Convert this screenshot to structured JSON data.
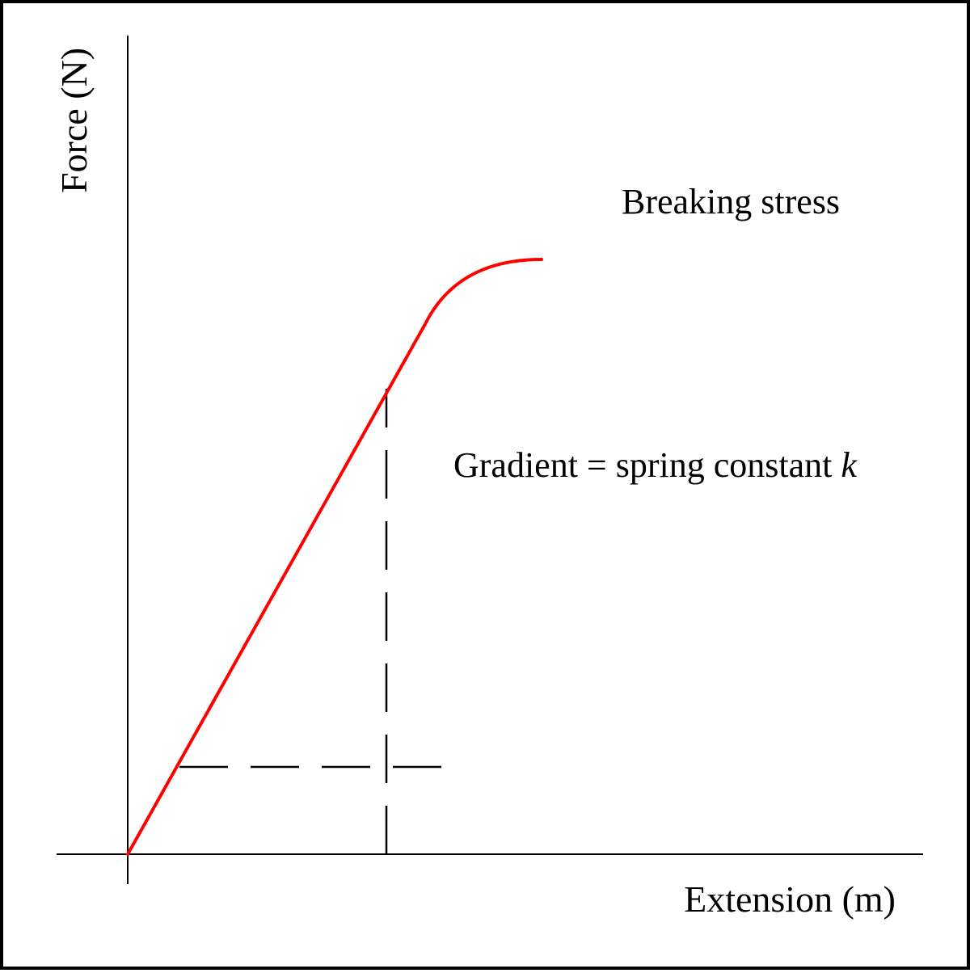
{
  "chart_data": {
    "type": "line",
    "title": "",
    "xlabel": "Extension (m)",
    "ylabel": "Force (N)",
    "ticks": "none",
    "grid": false,
    "series": [
      {
        "color": "#ff0000",
        "points": [
          [
            0,
            0
          ],
          [
            4.6,
            8.2
          ],
          [
            5.1,
            8.6
          ],
          [
            6.4,
            9.2
          ]
        ]
      }
    ],
    "gradient_triangle": {
      "style": "dashed",
      "color": "#000000",
      "base_from": [
        0.8,
        1.35
      ],
      "corner": [
        4.0,
        1.35
      ],
      "top": [
        4.0,
        7.2
      ]
    },
    "annotations": {
      "breaking": "Breaking stress",
      "gradient_prefix": "Gradient = spring constant ",
      "gradient_symbol": "k"
    }
  }
}
